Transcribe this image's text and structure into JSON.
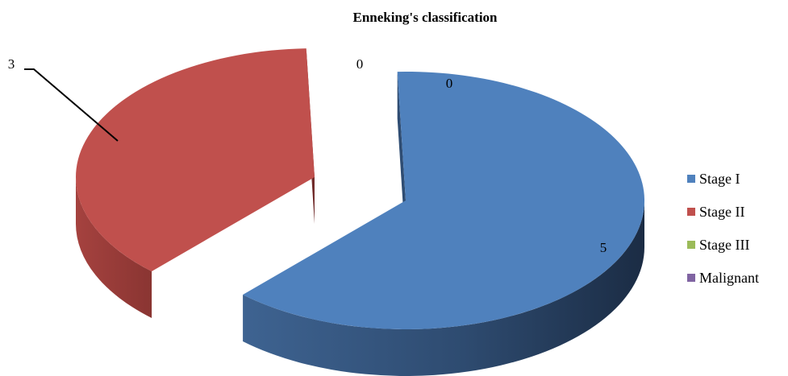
{
  "chart_data": {
    "type": "pie",
    "title": "Enneking's  classification",
    "categories": [
      "Stage I",
      "Stage II",
      "Stage III",
      "Malignant"
    ],
    "values": [
      5,
      3,
      0,
      0
    ],
    "colors": [
      "#4f81bd",
      "#c0504d",
      "#9bbb59",
      "#8064a2"
    ],
    "legend_position": "right",
    "exploded": true,
    "three_d": true
  }
}
